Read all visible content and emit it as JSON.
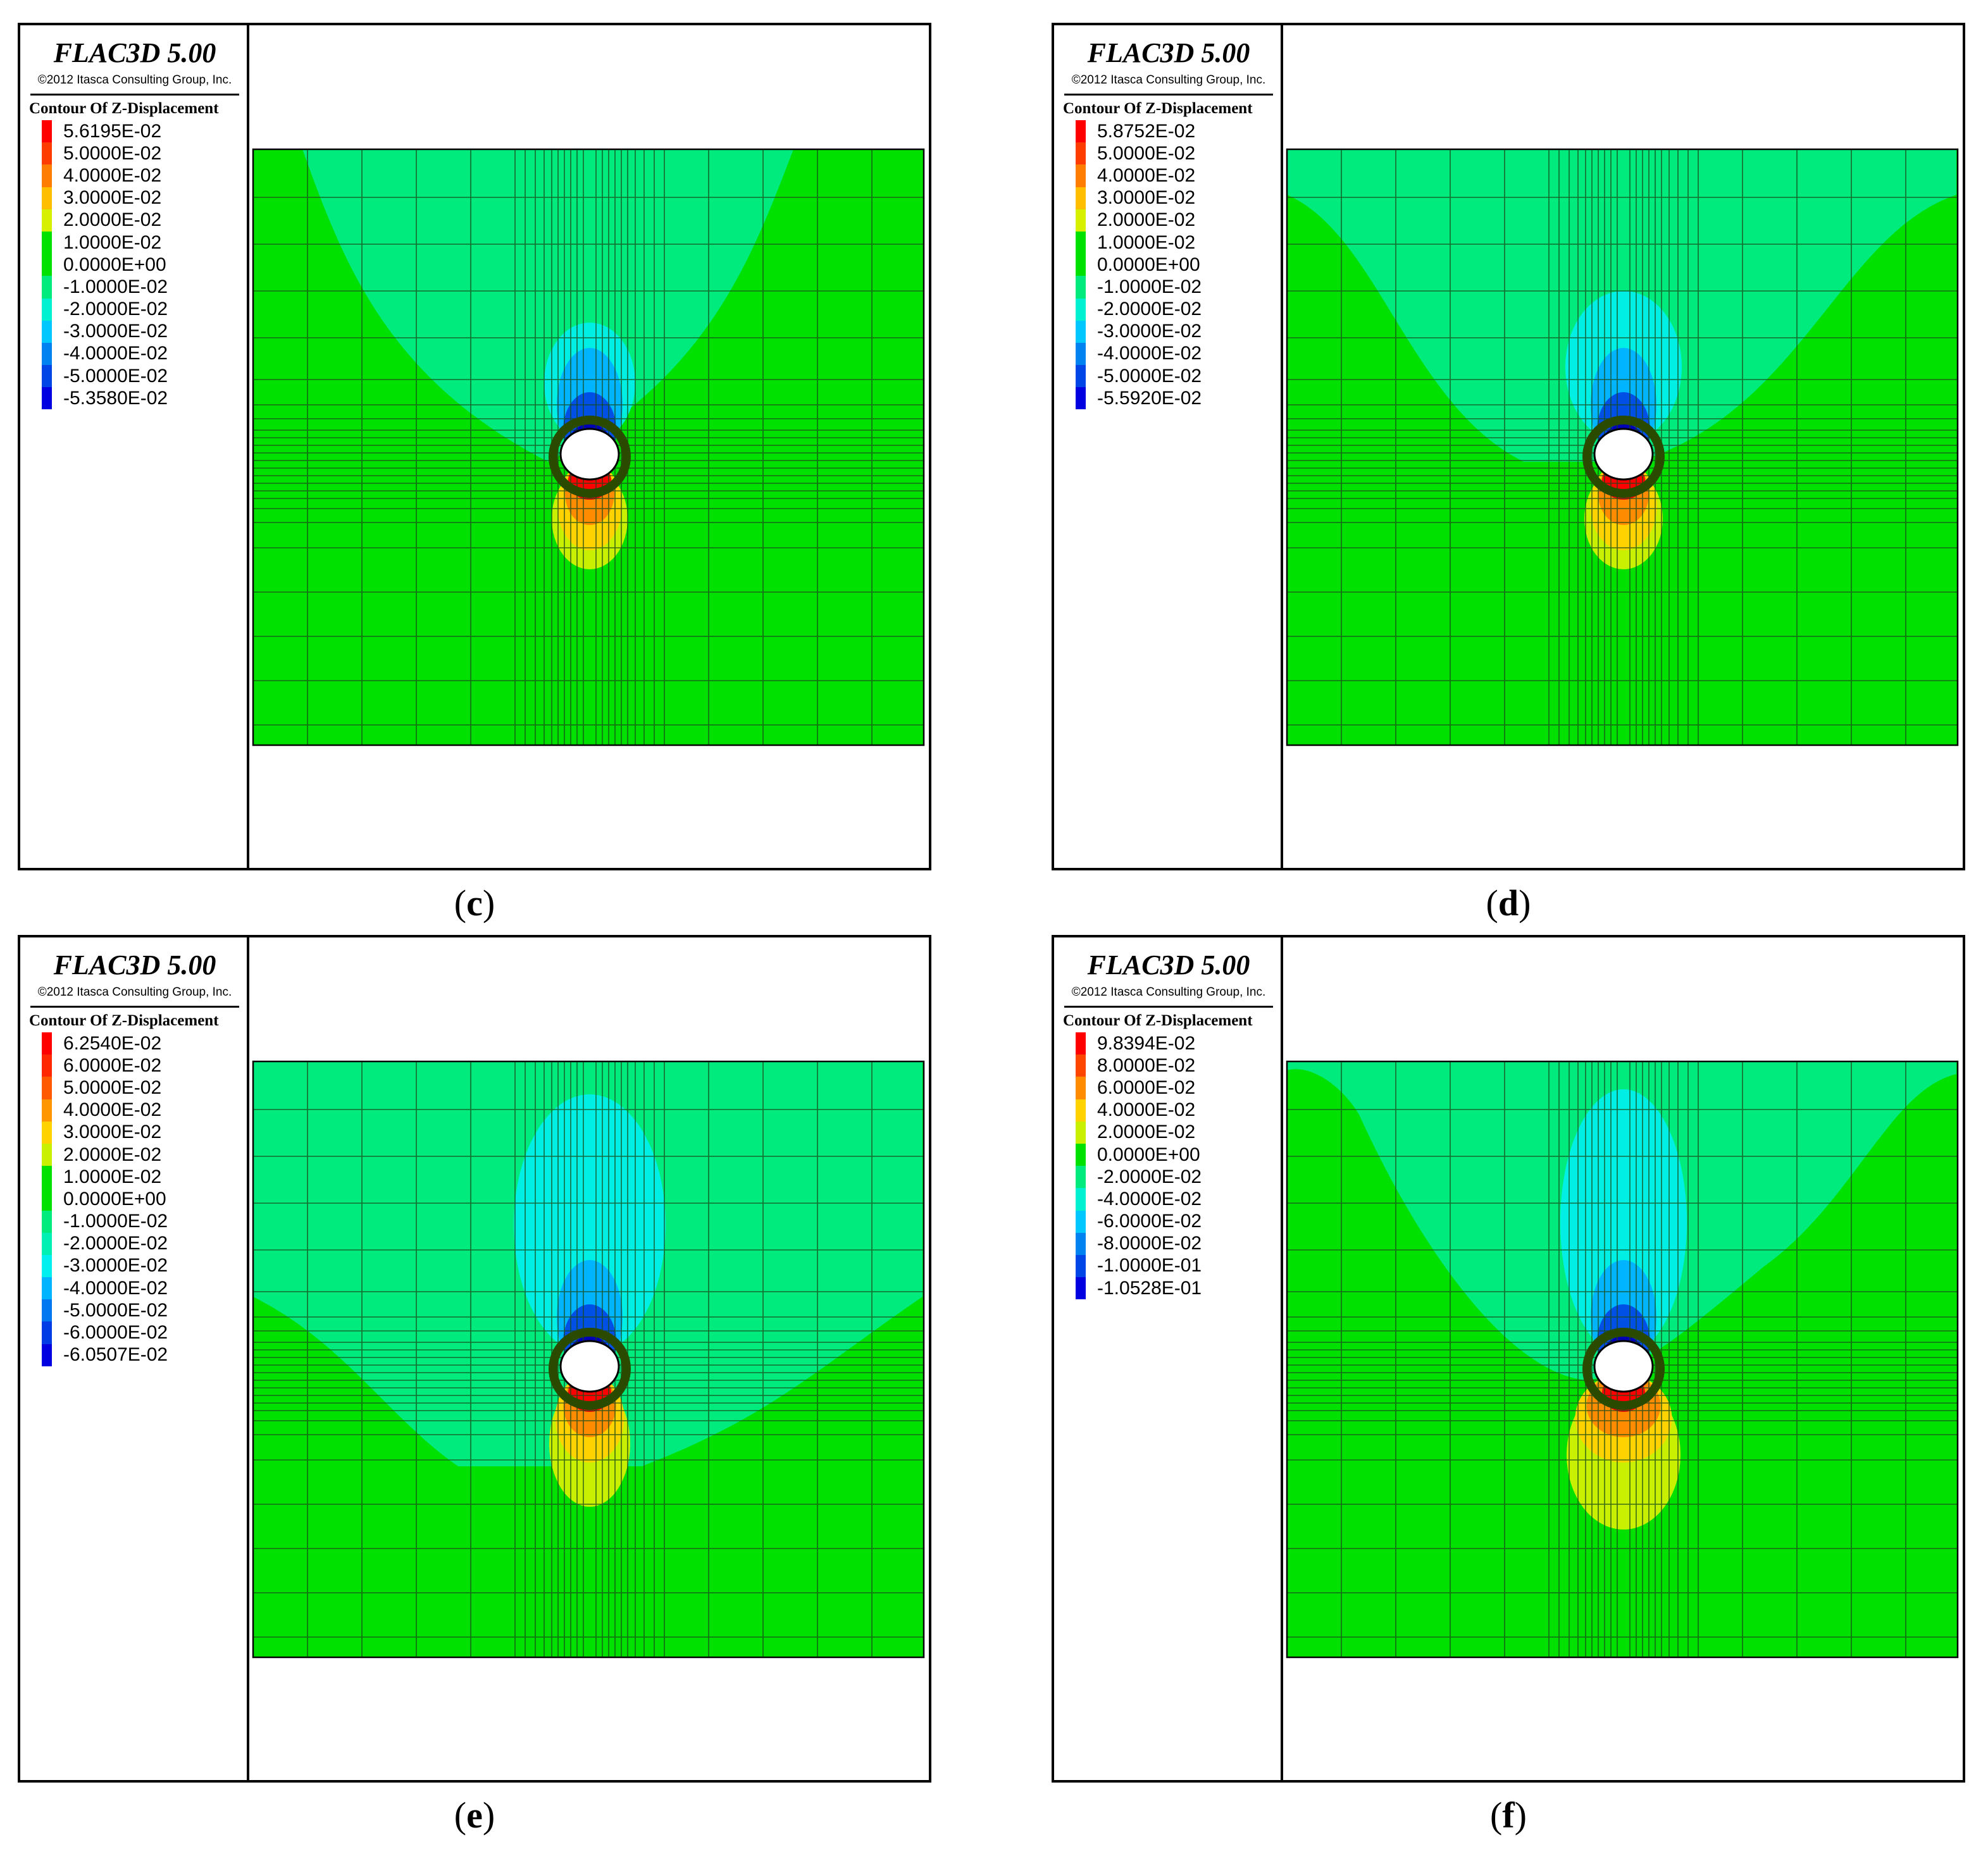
{
  "panels": [
    {
      "caption_letter": "c",
      "brand": "FLAC3D 5.00",
      "copyright": "©2012 Itasca Consulting Group, Inc.",
      "contour_title": "Contour Of Z-Displacement",
      "legend": [
        {
          "label": "5.6195E-02",
          "color": "#ff0000"
        },
        {
          "label": "5.0000E-02",
          "color": "#ff3c00"
        },
        {
          "label": "4.0000E-02",
          "color": "#ff7d00"
        },
        {
          "label": "3.0000E-02",
          "color": "#ffbe00"
        },
        {
          "label": "2.0000E-02",
          "color": "#d7f000"
        },
        {
          "label": "1.0000E-02",
          "color": "#00e100"
        },
        {
          "label": "0.0000E+00",
          "color": "#00e100"
        },
        {
          "label": "-1.0000E-02",
          "color": "#00eb7d"
        },
        {
          "label": "-2.0000E-02",
          "color": "#00f0d2"
        },
        {
          "label": "-3.0000E-02",
          "color": "#00c8ff"
        },
        {
          "label": "-4.0000E-02",
          "color": "#0082f0"
        },
        {
          "label": "-5.0000E-02",
          "color": "#0046e6"
        },
        {
          "label": "-5.3580E-02",
          "color": "#0000e1"
        }
      ]
    },
    {
      "caption_letter": "d",
      "brand": "FLAC3D 5.00",
      "copyright": "©2012 Itasca Consulting Group, Inc.",
      "contour_title": "Contour Of Z-Displacement",
      "legend": [
        {
          "label": "5.8752E-02",
          "color": "#ff0000"
        },
        {
          "label": "5.0000E-02",
          "color": "#ff3c00"
        },
        {
          "label": "4.0000E-02",
          "color": "#ff7d00"
        },
        {
          "label": "3.0000E-02",
          "color": "#ffbe00"
        },
        {
          "label": "2.0000E-02",
          "color": "#d7f000"
        },
        {
          "label": "1.0000E-02",
          "color": "#00e100"
        },
        {
          "label": "0.0000E+00",
          "color": "#00e100"
        },
        {
          "label": "-1.0000E-02",
          "color": "#00eb7d"
        },
        {
          "label": "-2.0000E-02",
          "color": "#00f0d2"
        },
        {
          "label": "-3.0000E-02",
          "color": "#00c8ff"
        },
        {
          "label": "-4.0000E-02",
          "color": "#0082f0"
        },
        {
          "label": "-5.0000E-02",
          "color": "#0046e6"
        },
        {
          "label": "-5.5920E-02",
          "color": "#0000e1"
        }
      ]
    },
    {
      "caption_letter": "e",
      "brand": "FLAC3D 5.00",
      "copyright": "©2012 Itasca Consulting Group, Inc.",
      "contour_title": "Contour Of Z-Displacement",
      "legend": [
        {
          "label": "6.2540E-02",
          "color": "#ff0000"
        },
        {
          "label": "6.0000E-02",
          "color": "#ff2800"
        },
        {
          "label": "5.0000E-02",
          "color": "#ff5a00"
        },
        {
          "label": "4.0000E-02",
          "color": "#ff9600"
        },
        {
          "label": "3.0000E-02",
          "color": "#ffd200"
        },
        {
          "label": "2.0000E-02",
          "color": "#c8f000"
        },
        {
          "label": "1.0000E-02",
          "color": "#00e100"
        },
        {
          "label": "0.0000E+00",
          "color": "#00e100"
        },
        {
          "label": "-1.0000E-02",
          "color": "#00eb7d"
        },
        {
          "label": "-2.0000E-02",
          "color": "#00f0b4"
        },
        {
          "label": "-3.0000E-02",
          "color": "#00f0f0"
        },
        {
          "label": "-4.0000E-02",
          "color": "#00b4ff"
        },
        {
          "label": "-5.0000E-02",
          "color": "#0078f0"
        },
        {
          "label": "-6.0000E-02",
          "color": "#003ce6"
        },
        {
          "label": "-6.0507E-02",
          "color": "#0000e1"
        }
      ]
    },
    {
      "caption_letter": "f",
      "brand": "FLAC3D 5.00",
      "copyright": "©2012 Itasca Consulting Group, Inc.",
      "contour_title": "Contour Of Z-Displacement",
      "legend": [
        {
          "label": "9.8394E-02",
          "color": "#ff0000"
        },
        {
          "label": "8.0000E-02",
          "color": "#ff4600"
        },
        {
          "label": "6.0000E-02",
          "color": "#ff8c00"
        },
        {
          "label": "4.0000E-02",
          "color": "#ffd200"
        },
        {
          "label": "2.0000E-02",
          "color": "#c8f000"
        },
        {
          "label": "0.0000E+00",
          "color": "#00e100"
        },
        {
          "label": "-2.0000E-02",
          "color": "#00eb7d"
        },
        {
          "label": "-4.0000E-02",
          "color": "#00f0d2"
        },
        {
          "label": "-6.0000E-02",
          "color": "#00c8ff"
        },
        {
          "label": "-8.0000E-02",
          "color": "#0082f0"
        },
        {
          "label": "-1.0000E-01",
          "color": "#0046e6"
        },
        {
          "label": "-1.0528E-01",
          "color": "#0000e1"
        }
      ]
    }
  ],
  "colors": {
    "soil": "#00e100",
    "band_upper": "#00eb7d",
    "band_cyan": "#00f0f0",
    "band_lightblue": "#00b4ff",
    "band_blue": "#0050e6",
    "band_darkblue": "#0000b4",
    "heave_yellowgreen": "#c8f000",
    "heave_yellow": "#ffd200",
    "heave_orange": "#ff8c00",
    "heave_red": "#ff0000",
    "mesh": "#1a4a1a",
    "frame": "#000000"
  }
}
